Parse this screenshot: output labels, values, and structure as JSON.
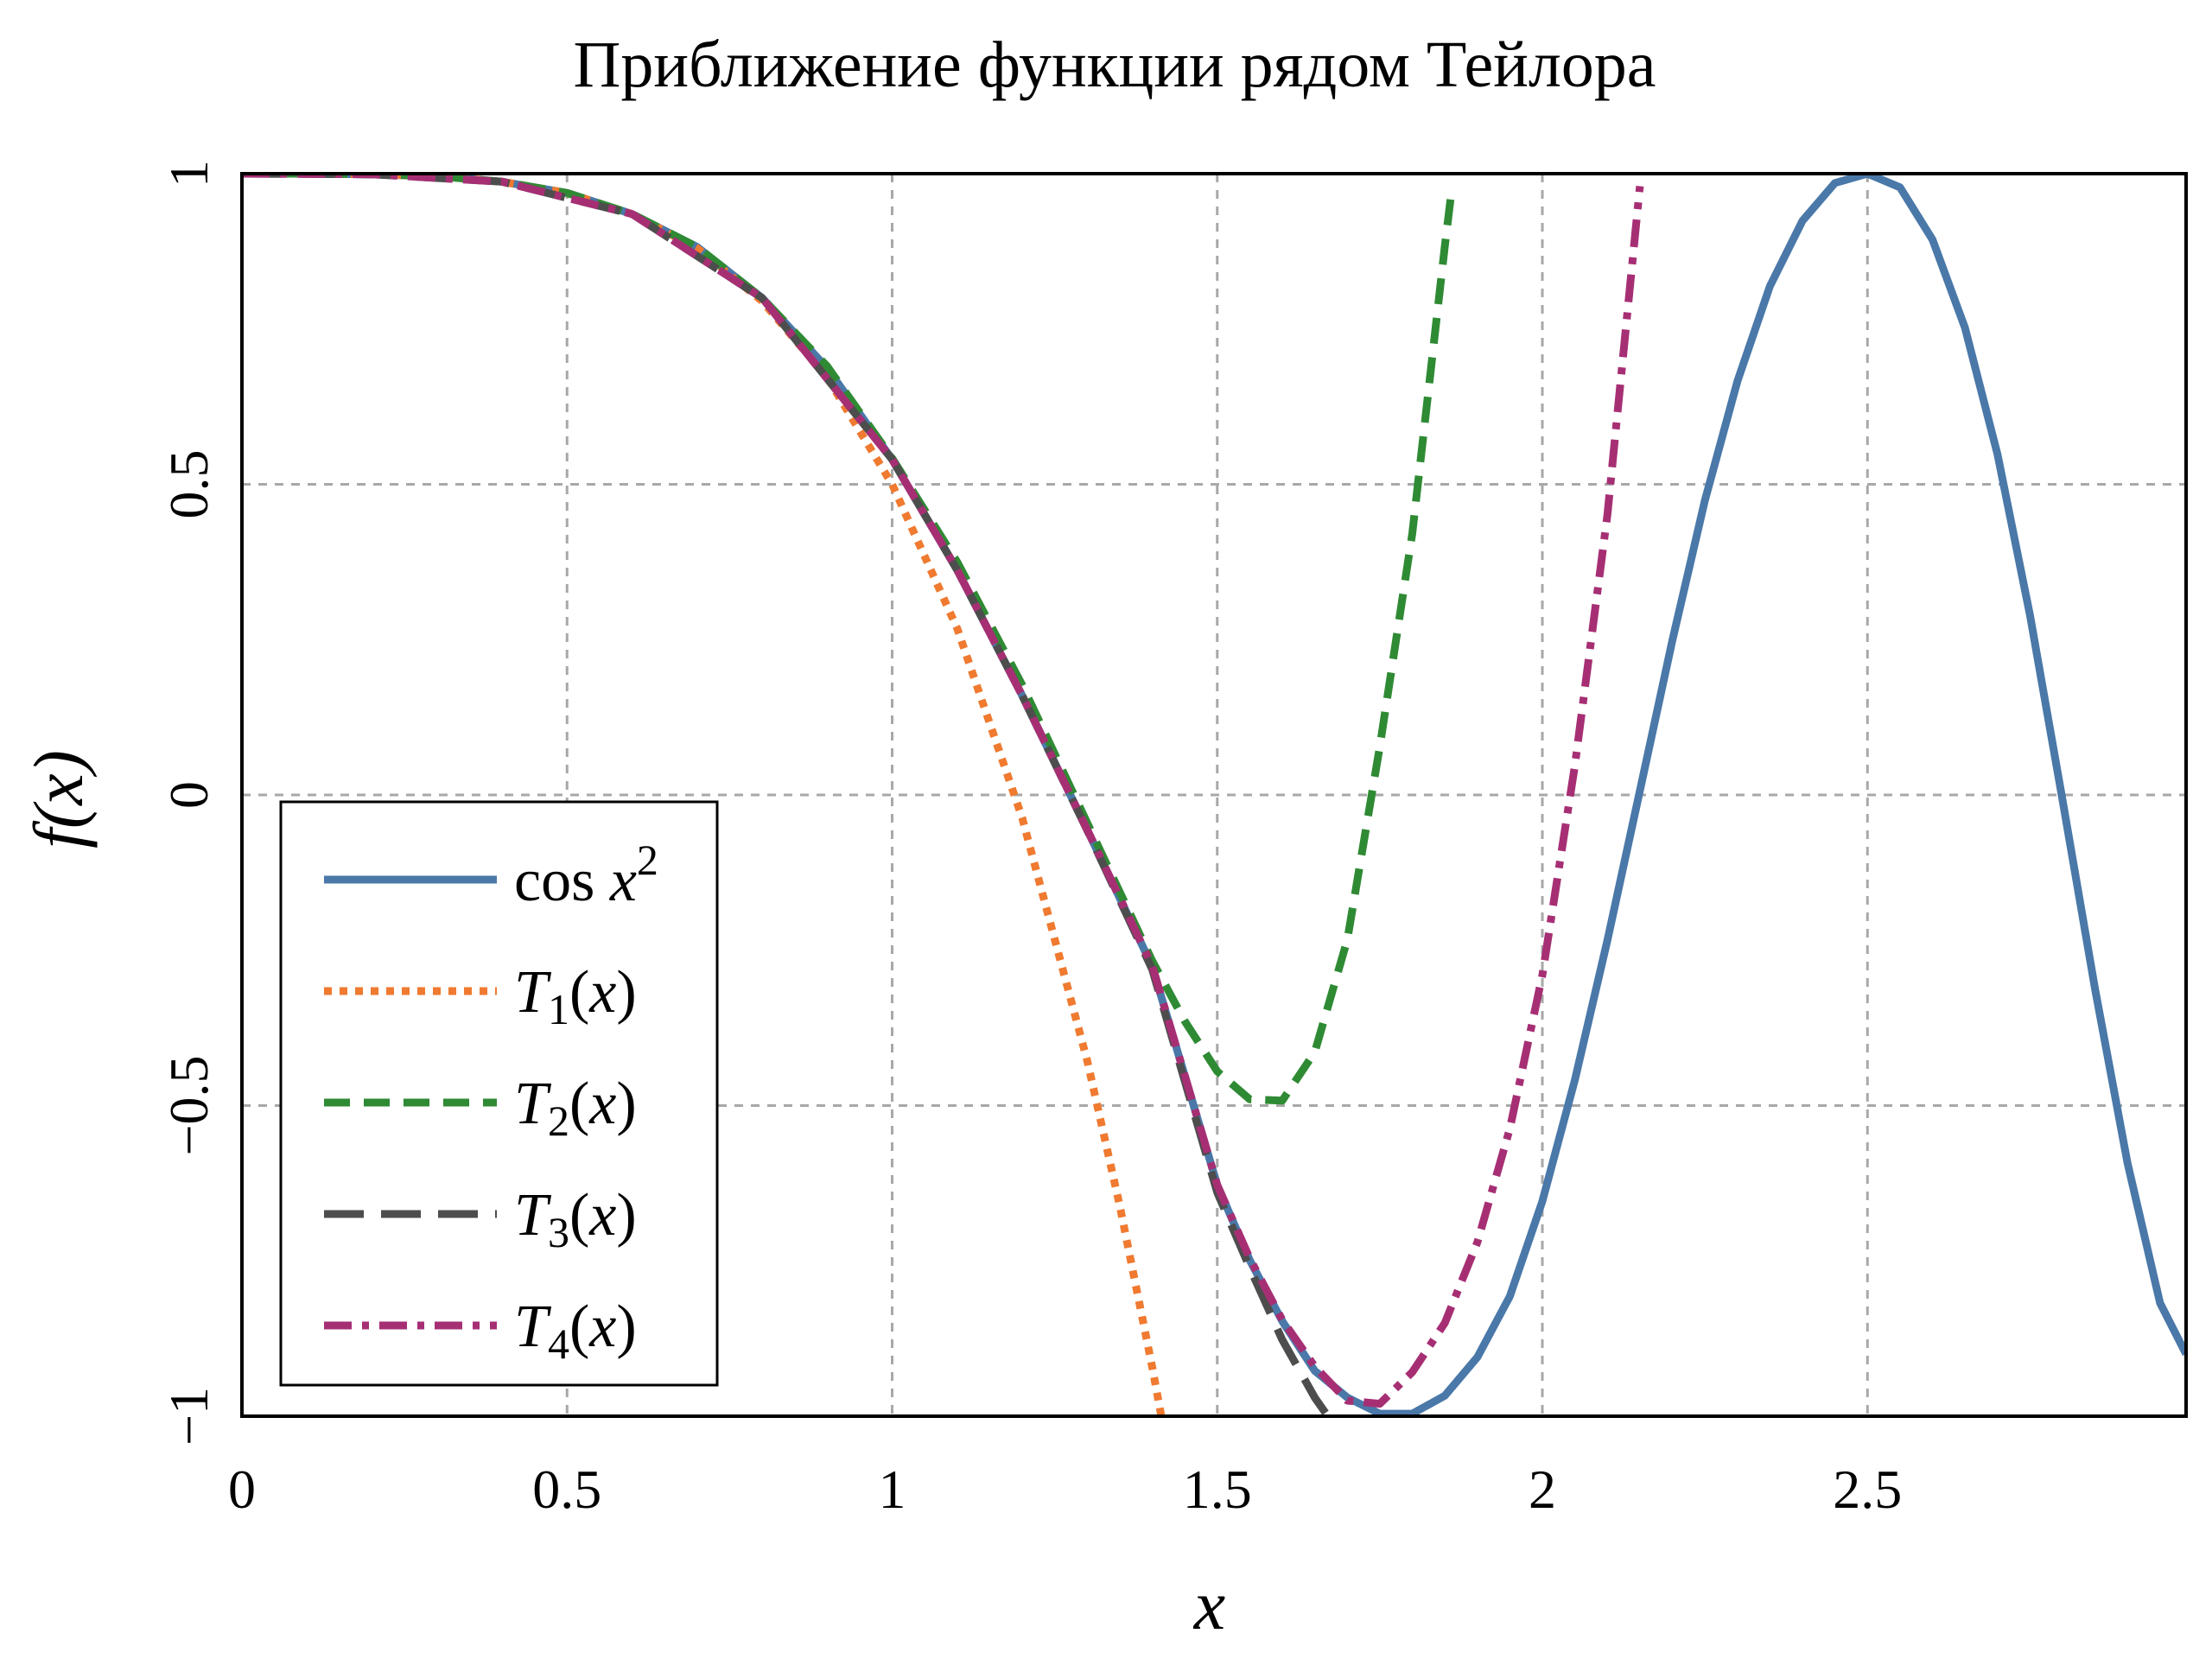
{
  "chart_data": {
    "type": "line",
    "title": "Приближение функции рядом Тейлора",
    "xlabel": "x",
    "ylabel": "f(x)",
    "xlim": [
      0,
      2.99
    ],
    "ylim": [
      -1,
      1
    ],
    "grid": true,
    "legend_position": "lower-left",
    "x_ticks": [
      {
        "value": 0,
        "label": "0"
      },
      {
        "value": 0.5,
        "label": "0.5"
      },
      {
        "value": 1,
        "label": "1"
      },
      {
        "value": 1.5,
        "label": "1.5"
      },
      {
        "value": 2,
        "label": "2"
      },
      {
        "value": 2.5,
        "label": "2.5"
      }
    ],
    "y_ticks": [
      {
        "value": -1,
        "label": "−1"
      },
      {
        "value": -0.5,
        "label": "−0.5"
      },
      {
        "value": 0,
        "label": "0"
      },
      {
        "value": 0.5,
        "label": "0.5"
      },
      {
        "value": 1,
        "label": "1"
      }
    ],
    "series": [
      {
        "key": "cos",
        "legend": {
          "base": "cos ",
          "var": "x",
          "sub": "",
          "sup": "2",
          "suffix": ""
        },
        "color": "#4a78a8",
        "style": "solid",
        "x": [
          0.0,
          0.1,
          0.2,
          0.3,
          0.4,
          0.5,
          0.6,
          0.7,
          0.8,
          0.9,
          1.0,
          1.1,
          1.2,
          1.3,
          1.4,
          1.5,
          1.55,
          1.6,
          1.65,
          1.7,
          1.75,
          1.8,
          1.85,
          1.9,
          1.95,
          2.0,
          2.05,
          2.1,
          2.15,
          2.2,
          2.25,
          2.3,
          2.35,
          2.4,
          2.45,
          2.5,
          2.55,
          2.6,
          2.65,
          2.7,
          2.75,
          2.8,
          2.85,
          2.9,
          2.95,
          2.99
        ],
        "y": [
          1.0,
          1.0,
          0.999,
          0.996,
          0.987,
          0.969,
          0.935,
          0.882,
          0.8,
          0.687,
          0.54,
          0.362,
          0.16,
          -0.056,
          -0.276,
          -0.628,
          -0.749,
          -0.847,
          -0.927,
          -0.97,
          -0.996,
          -0.996,
          -0.967,
          -0.905,
          -0.807,
          -0.654,
          -0.459,
          -0.234,
          0.007,
          0.249,
          0.474,
          0.666,
          0.819,
          0.924,
          0.985,
          1.0,
          0.978,
          0.894,
          0.752,
          0.548,
          0.289,
          -0.008,
          -0.312,
          -0.593,
          -0.818,
          -0.9
        ]
      },
      {
        "key": "t1",
        "legend": {
          "base": "",
          "var": "T",
          "sub": "1",
          "sup": "",
          "suffix": "(x)"
        },
        "color": "#ef7a30",
        "style": "dotted",
        "x": [
          0.0,
          0.1,
          0.2,
          0.3,
          0.4,
          0.5,
          0.6,
          0.7,
          0.8,
          0.9,
          1.0,
          1.1,
          1.2,
          1.3,
          1.35,
          1.4,
          1.414
        ],
        "y": [
          1.0,
          1.0,
          0.999,
          0.996,
          0.987,
          0.969,
          0.935,
          0.88,
          0.795,
          0.672,
          0.5,
          0.268,
          -0.037,
          -0.428,
          -0.661,
          -0.921,
          -1.0
        ]
      },
      {
        "key": "t2",
        "legend": {
          "base": "",
          "var": "T",
          "sub": "2",
          "sup": "",
          "suffix": "(x)"
        },
        "color": "#2f8a34",
        "style": "dashed",
        "x": [
          0.0,
          0.1,
          0.2,
          0.3,
          0.4,
          0.5,
          0.6,
          0.7,
          0.8,
          0.9,
          1.0,
          1.1,
          1.2,
          1.3,
          1.4,
          1.45,
          1.5,
          1.55,
          1.6,
          1.65,
          1.7,
          1.75,
          1.8,
          1.85,
          1.86
        ],
        "y": [
          1.0,
          1.0,
          0.999,
          0.996,
          0.987,
          0.969,
          0.935,
          0.882,
          0.8,
          0.69,
          0.542,
          0.375,
          0.177,
          -0.045,
          -0.267,
          -0.364,
          -0.445,
          -0.49,
          -0.492,
          -0.414,
          -0.233,
          0.078,
          0.421,
          0.883,
          0.97
        ]
      },
      {
        "key": "t3",
        "legend": {
          "base": "",
          "var": "T",
          "sub": "3",
          "sup": "",
          "suffix": "(x)"
        },
        "color": "#4d4d4d",
        "style": "longdash",
        "x": [
          0.0,
          0.2,
          0.4,
          0.6,
          0.8,
          1.0,
          1.1,
          1.2,
          1.3,
          1.4,
          1.5,
          1.55,
          1.6,
          1.65,
          1.67
        ],
        "y": [
          1.0,
          0.999,
          0.987,
          0.935,
          0.8,
          0.54,
          0.362,
          0.16,
          -0.057,
          -0.281,
          -0.64,
          -0.761,
          -0.877,
          -0.97,
          -1.0
        ]
      },
      {
        "key": "t4",
        "legend": {
          "base": "",
          "var": "T",
          "sub": "4",
          "sup": "",
          "suffix": "(x)"
        },
        "color": "#a62f74",
        "style": "dashdot",
        "x": [
          0.0,
          0.2,
          0.4,
          0.6,
          0.8,
          1.0,
          1.1,
          1.2,
          1.3,
          1.4,
          1.5,
          1.55,
          1.6,
          1.65,
          1.7,
          1.75,
          1.8,
          1.85,
          1.9,
          1.95,
          2.0,
          2.05,
          2.1,
          2.15
        ],
        "y": [
          1.0,
          0.999,
          0.987,
          0.935,
          0.8,
          0.54,
          0.362,
          0.16,
          -0.056,
          -0.275,
          -0.628,
          -0.746,
          -0.845,
          -0.92,
          -0.975,
          -0.98,
          -0.929,
          -0.85,
          -0.72,
          -0.537,
          -0.29,
          0.047,
          0.451,
          0.98
        ]
      }
    ]
  }
}
